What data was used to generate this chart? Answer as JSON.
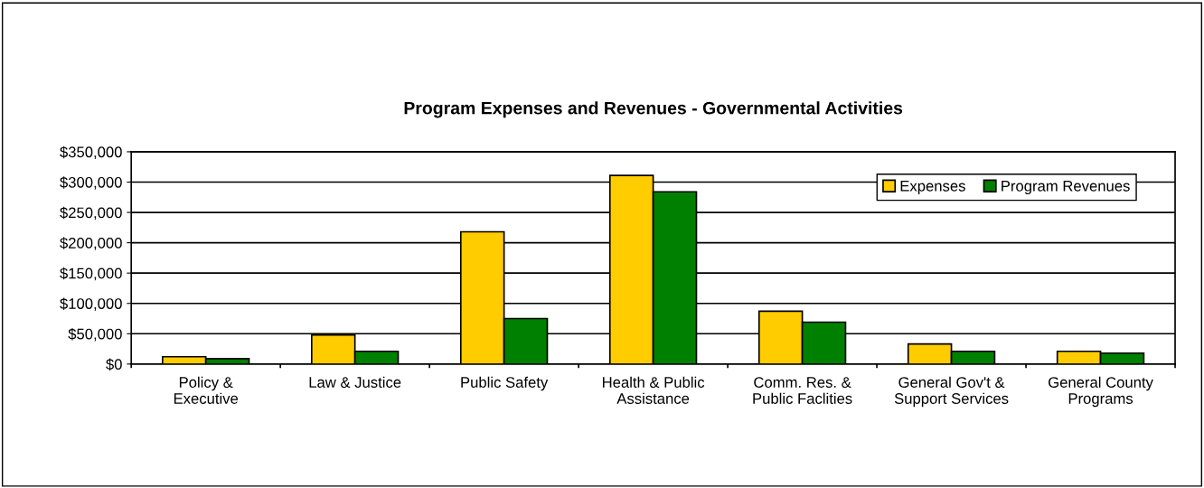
{
  "chart_data": {
    "type": "bar",
    "title": "Program Expenses and Revenues - Governmental Activities",
    "categories": [
      "Policy &\nExecutive",
      "Law & Justice",
      "Public Safety",
      "Health & Public\nAssistance",
      "Comm. Res. &\nPublic Faclities",
      "General Gov't &\nSupport Services",
      "General County\nPrograms"
    ],
    "series": [
      {
        "name": "Expenses",
        "color": "#ffcc00",
        "values": [
          12000,
          48000,
          218000,
          311000,
          87000,
          33000,
          21000
        ]
      },
      {
        "name": "Program Revenues",
        "color": "#008000",
        "values": [
          9000,
          21000,
          75000,
          284000,
          69000,
          21000,
          18000
        ]
      }
    ],
    "ylim": [
      0,
      350000
    ],
    "yticks": [
      {
        "value": 0,
        "label": "$0"
      },
      {
        "value": 50000,
        "label": "$50,000"
      },
      {
        "value": 100000,
        "label": "$100,000"
      },
      {
        "value": 150000,
        "label": "$150,000"
      },
      {
        "value": 200000,
        "label": "$200,000"
      },
      {
        "value": 250000,
        "label": "$250,000"
      },
      {
        "value": 300000,
        "label": "$300,000"
      },
      {
        "value": 350000,
        "label": "$350,000"
      }
    ],
    "grid": "y",
    "legend": "top right"
  }
}
